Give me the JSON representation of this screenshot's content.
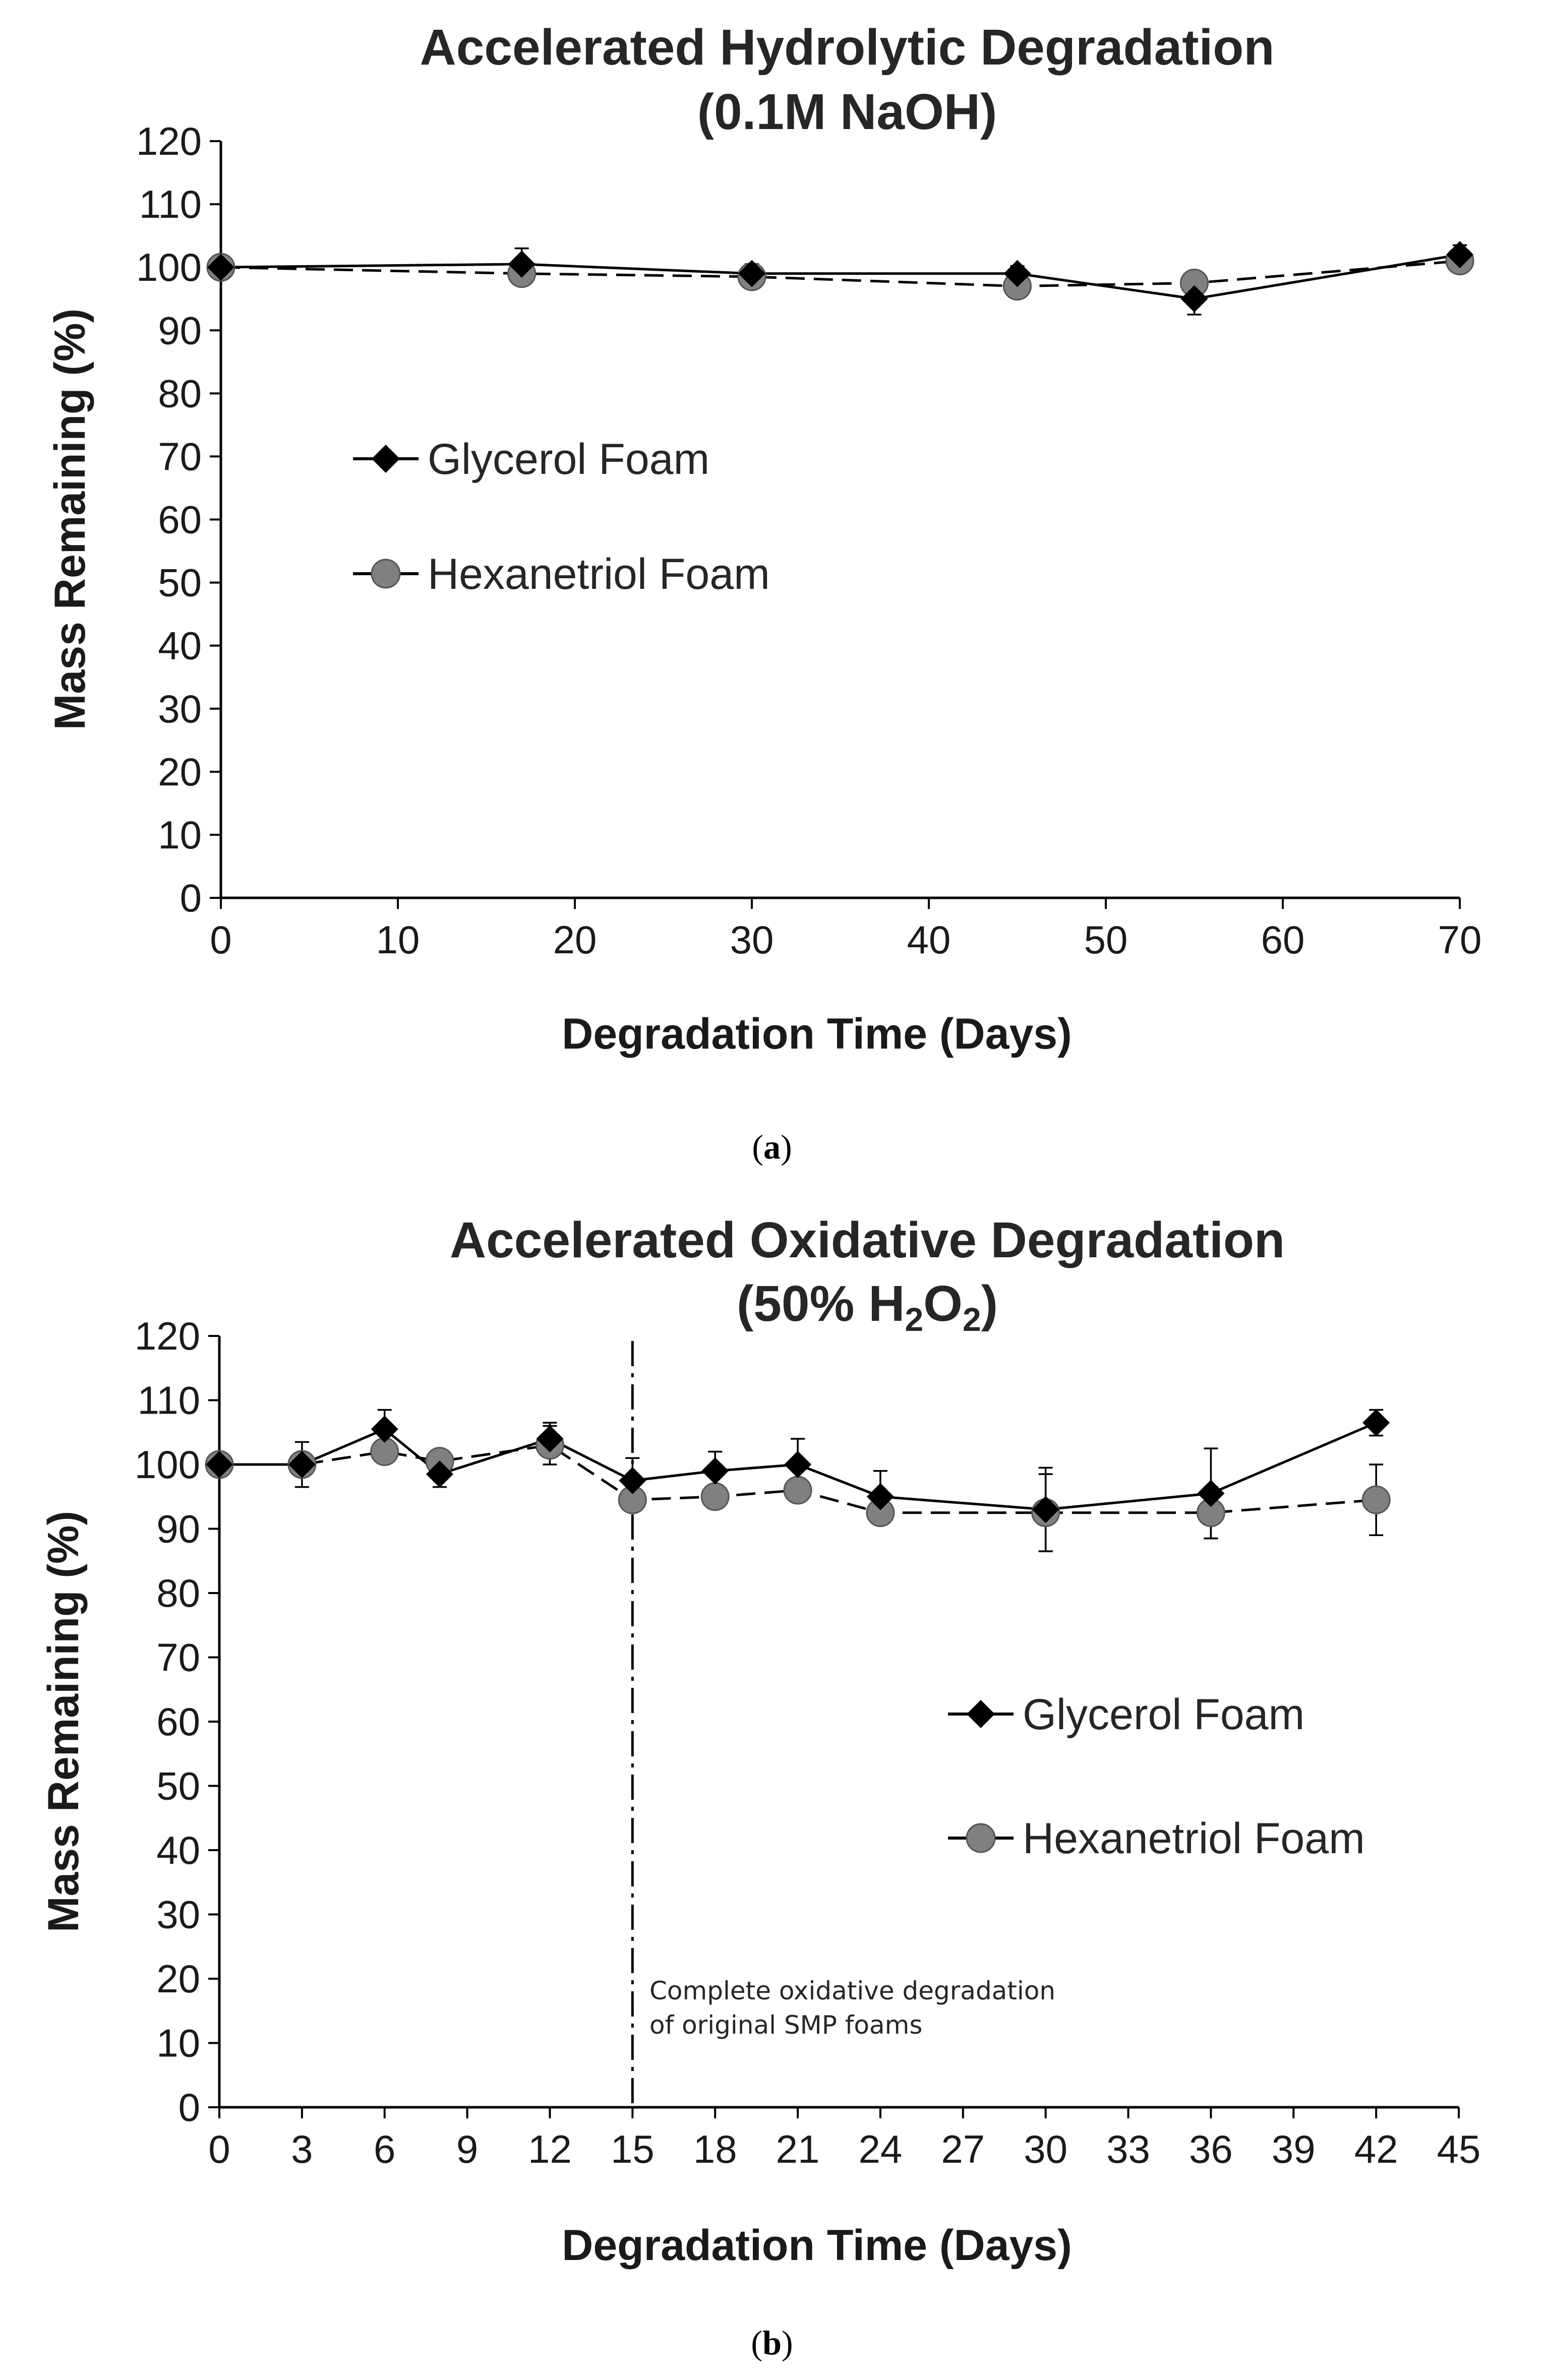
{
  "chart_data": [
    {
      "type": "line",
      "title_line1": "Accelerated Hydrolytic Degradation",
      "title_line2": "(0.1M NaOH)",
      "xlabel": "Degradation Time (Days)",
      "ylabel": "Mass Remaining (%)",
      "xlim": [
        0,
        70
      ],
      "ylim": [
        0,
        120
      ],
      "xticks": [
        "0",
        "10",
        "20",
        "30",
        "40",
        "50",
        "60",
        "70"
      ],
      "yticks": [
        "0",
        "10",
        "20",
        "30",
        "40",
        "50",
        "60",
        "70",
        "80",
        "90",
        "100",
        "110",
        "120"
      ],
      "grid": false,
      "legend_position": "middle-left",
      "series": [
        {
          "name": "Glycerol Foam",
          "marker": "diamond",
          "line": "solid",
          "color": "#000000",
          "x": [
            0,
            17,
            30,
            45,
            55,
            70
          ],
          "y": [
            100,
            100.5,
            99,
            99,
            95,
            102
          ],
          "err": [
            0,
            2.5,
            1.5,
            1.2,
            2.5,
            1.5
          ]
        },
        {
          "name": "Hexanetriol Foam",
          "marker": "circle",
          "line": "dashed",
          "color": "#808080",
          "x": [
            0,
            17,
            30,
            45,
            55,
            70
          ],
          "y": [
            100,
            99,
            98.5,
            97,
            97.5,
            101
          ],
          "err": [
            0,
            0.8,
            1.8,
            0.8,
            0.5,
            0.8
          ]
        }
      ],
      "caption_letter": "a"
    },
    {
      "type": "line",
      "title_line1": "Accelerated Oxidative Degradation",
      "title_prefix": "(50% H",
      "title_sub1": "2",
      "title_mid": "O",
      "title_sub2": "2",
      "title_suffix": ")",
      "xlabel": "Degradation Time (Days)",
      "ylabel": "Mass Remaining (%)",
      "xlim": [
        0,
        45
      ],
      "ylim": [
        0,
        120
      ],
      "xticks": [
        "0",
        "3",
        "6",
        "9",
        "12",
        "15",
        "18",
        "21",
        "24",
        "27",
        "30",
        "33",
        "36",
        "39",
        "42",
        "45"
      ],
      "yticks": [
        "0",
        "10",
        "20",
        "30",
        "40",
        "50",
        "60",
        "70",
        "80",
        "90",
        "100",
        "110",
        "120"
      ],
      "grid": false,
      "legend_position": "middle-right",
      "vline_x": 15,
      "annotation_line1": "Complete oxidative degradation",
      "annotation_line2": "of original SMP foams",
      "series": [
        {
          "name": "Glycerol Foam",
          "marker": "diamond",
          "line": "solid",
          "color": "#000000",
          "x": [
            0,
            3,
            6,
            8,
            12,
            15,
            18,
            21,
            24,
            30,
            36,
            42
          ],
          "y": [
            100,
            100,
            105.5,
            98.5,
            104,
            97.5,
            99,
            100,
            95,
            93,
            95.5,
            106.5
          ],
          "err": [
            0,
            3.5,
            3,
            2,
            2.5,
            3.5,
            3,
            4,
            4,
            6.5,
            7,
            2
          ]
        },
        {
          "name": "Hexanetriol Foam",
          "marker": "circle",
          "line": "dashed",
          "color": "#808080",
          "x": [
            0,
            3,
            6,
            8,
            12,
            15,
            18,
            21,
            24,
            30,
            36,
            42
          ],
          "y": [
            100,
            100,
            102,
            100.5,
            103,
            94.5,
            95,
            96,
            92.5,
            92.5,
            92.5,
            94.5
          ],
          "err": [
            0,
            1.5,
            1.5,
            1,
            3,
            1.5,
            1.5,
            1.5,
            1.5,
            6,
            4,
            5.5
          ]
        }
      ],
      "caption_letter": "b"
    }
  ]
}
